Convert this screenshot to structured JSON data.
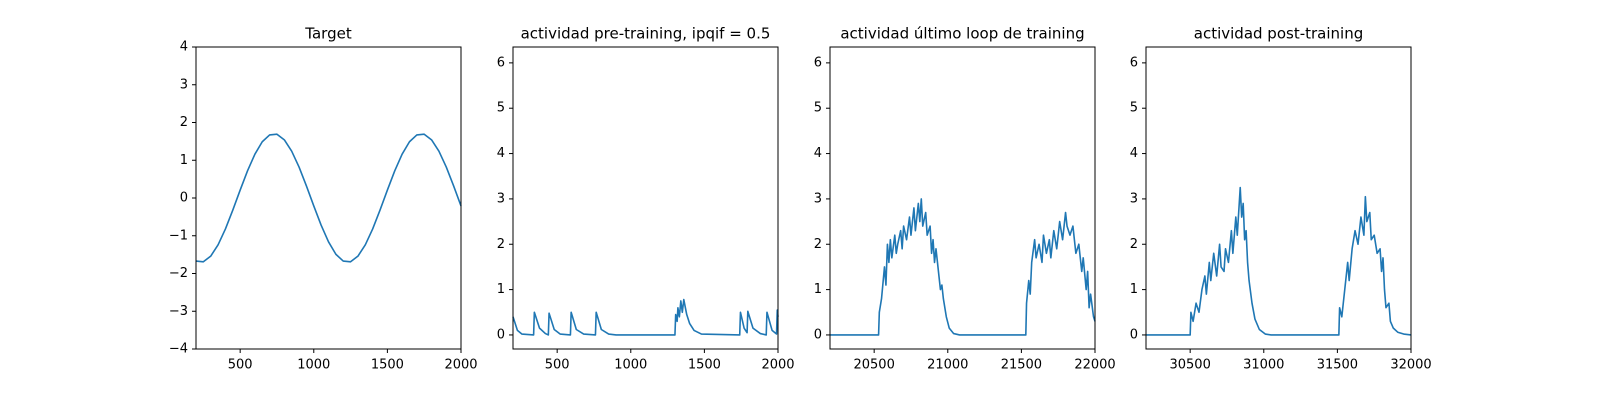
{
  "chart_data": [
    {
      "type": "line",
      "title": "Target",
      "color": "#1f77b4",
      "x": [
        200,
        250,
        300,
        350,
        400,
        450,
        500,
        550,
        600,
        650,
        700,
        750,
        800,
        850,
        900,
        950,
        1000,
        1050,
        1100,
        1150,
        1200,
        1250,
        1300,
        1350,
        1400,
        1450,
        1500,
        1550,
        1600,
        1650,
        1700,
        1750,
        1800,
        1850,
        1900,
        1950,
        2000
      ],
      "values": [
        -1.67,
        -1.69,
        -1.54,
        -1.24,
        -0.82,
        -0.32,
        0.21,
        0.72,
        1.16,
        1.49,
        1.67,
        1.69,
        1.54,
        1.24,
        0.82,
        0.32,
        -0.21,
        -0.72,
        -1.16,
        -1.49,
        -1.67,
        -1.69,
        -1.54,
        -1.24,
        -0.82,
        -0.32,
        0.21,
        0.72,
        1.16,
        1.49,
        1.67,
        1.69,
        1.54,
        1.24,
        0.82,
        0.32,
        -0.21
      ],
      "xlim": [
        200,
        2000
      ],
      "xticks": [
        500,
        1000,
        1500,
        2000
      ],
      "ylim": [
        -4,
        4
      ],
      "yticks": [
        {
          "value": -4,
          "label": "−4"
        },
        {
          "value": -3,
          "label": "−3"
        },
        {
          "value": -2,
          "label": "−2"
        },
        {
          "value": -1,
          "label": "−1"
        },
        0,
        1,
        2,
        3,
        4
      ]
    },
    {
      "type": "line",
      "title": "actividad pre-training, ipqif = 0.5",
      "color": "#1f77b4",
      "x": [
        200,
        230,
        260,
        340,
        345,
        380,
        420,
        440,
        445,
        480,
        520,
        590,
        595,
        630,
        680,
        760,
        765,
        800,
        850,
        900,
        1300,
        1305,
        1315,
        1320,
        1330,
        1340,
        1350,
        1360,
        1380,
        1400,
        1430,
        1480,
        1740,
        1745,
        1770,
        1790,
        1795,
        1830,
        1880,
        1920,
        1925,
        1960,
        1990,
        1995,
        2000
      ],
      "values": [
        0.4,
        0.1,
        0.02,
        0,
        0.5,
        0.15,
        0.03,
        0,
        0.48,
        0.12,
        0.02,
        0,
        0.5,
        0.12,
        0.02,
        0,
        0.5,
        0.12,
        0.02,
        0,
        0,
        0.45,
        0.3,
        0.6,
        0.4,
        0.75,
        0.5,
        0.78,
        0.45,
        0.25,
        0.1,
        0.02,
        0,
        0.5,
        0.15,
        0.05,
        0.52,
        0.15,
        0.03,
        0,
        0.5,
        0.1,
        0.02,
        0.55,
        0.4
      ],
      "xlim": [
        200,
        2000
      ],
      "xticks": [
        500,
        1000,
        1500,
        2000
      ],
      "ylim": [
        -0.31,
        6.35
      ],
      "yticks": [
        0,
        1,
        2,
        3,
        4,
        5,
        6
      ]
    },
    {
      "type": "line",
      "title": "actividad último loop de training",
      "color": "#1f77b4",
      "x": [
        20200,
        20530,
        20535,
        20550,
        20570,
        20580,
        20590,
        20600,
        20610,
        20620,
        20640,
        20650,
        20660,
        20680,
        20690,
        20700,
        20720,
        20740,
        20750,
        20770,
        20780,
        20800,
        20810,
        20820,
        20830,
        20850,
        20860,
        20880,
        20890,
        20900,
        20910,
        20920,
        20940,
        20950,
        20960,
        20970,
        20990,
        21010,
        21040,
        21080,
        21530,
        21535,
        21550,
        21560,
        21570,
        21590,
        21600,
        21620,
        21640,
        21650,
        21670,
        21690,
        21700,
        21720,
        21740,
        21760,
        21780,
        21800,
        21810,
        21830,
        21850,
        21870,
        21890,
        21910,
        21920,
        21940,
        21950,
        21960,
        21970,
        21990,
        22000
      ],
      "values": [
        0,
        0,
        0.5,
        0.8,
        1.5,
        1.1,
        2.0,
        1.6,
        2.1,
        1.7,
        2.2,
        1.8,
        2.0,
        2.3,
        1.9,
        2.4,
        2.1,
        2.6,
        2.2,
        2.8,
        2.3,
        2.9,
        2.5,
        3.0,
        2.4,
        2.7,
        2.2,
        2.4,
        1.8,
        2.1,
        1.6,
        1.9,
        1.3,
        1.0,
        1.1,
        0.8,
        0.4,
        0.15,
        0.03,
        0,
        0,
        0.7,
        1.2,
        0.9,
        1.6,
        2.1,
        1.7,
        2.0,
        1.6,
        2.2,
        1.8,
        2.1,
        1.7,
        2.3,
        1.9,
        2.5,
        2.1,
        2.7,
        2.4,
        2.2,
        2.4,
        1.8,
        2.0,
        1.4,
        1.7,
        1.0,
        1.4,
        0.6,
        0.9,
        0.4,
        0.3
      ],
      "xlim": [
        20200,
        22000
      ],
      "xticks": [
        20500,
        21000,
        21500,
        22000
      ],
      "ylim": [
        -0.31,
        6.35
      ],
      "yticks": [
        0,
        1,
        2,
        3,
        4,
        5,
        6
      ]
    },
    {
      "type": "line",
      "title": "actividad post-training",
      "color": "#1f77b4",
      "x": [
        30200,
        30500,
        30505,
        30520,
        30540,
        30560,
        30580,
        30600,
        30610,
        30630,
        30640,
        30660,
        30680,
        30700,
        30710,
        30730,
        30740,
        30760,
        30780,
        30790,
        30810,
        30820,
        30840,
        30850,
        30860,
        30870,
        30880,
        30890,
        30900,
        30920,
        30940,
        30970,
        31010,
        31050,
        31510,
        31515,
        31530,
        31550,
        31570,
        31580,
        31600,
        31620,
        31640,
        31660,
        31680,
        31690,
        31700,
        31720,
        31730,
        31750,
        31770,
        31790,
        31800,
        31810,
        31820,
        31830,
        31850,
        31860,
        31880,
        31910,
        31950,
        32000
      ],
      "values": [
        0,
        0,
        0.5,
        0.3,
        0.7,
        0.5,
        1.0,
        1.3,
        0.9,
        1.6,
        1.2,
        1.8,
        1.3,
        2.0,
        1.5,
        1.4,
        1.9,
        1.6,
        2.3,
        1.8,
        2.6,
        2.2,
        3.25,
        2.6,
        2.9,
        2.1,
        2.3,
        1.6,
        1.2,
        0.7,
        0.35,
        0.12,
        0.02,
        0,
        0,
        0.6,
        0.4,
        1.0,
        1.6,
        1.2,
        1.9,
        2.3,
        2.0,
        2.6,
        2.2,
        3.05,
        2.5,
        2.7,
        2.1,
        2.2,
        1.8,
        1.9,
        1.4,
        1.7,
        1.0,
        0.6,
        0.7,
        0.3,
        0.15,
        0.06,
        0.02,
        0
      ],
      "xlim": [
        30200,
        32000
      ],
      "xticks": [
        30500,
        31000,
        31500,
        32000
      ],
      "ylim": [
        -0.31,
        6.35
      ],
      "yticks": [
        0,
        1,
        2,
        3,
        4,
        5,
        6
      ]
    }
  ]
}
